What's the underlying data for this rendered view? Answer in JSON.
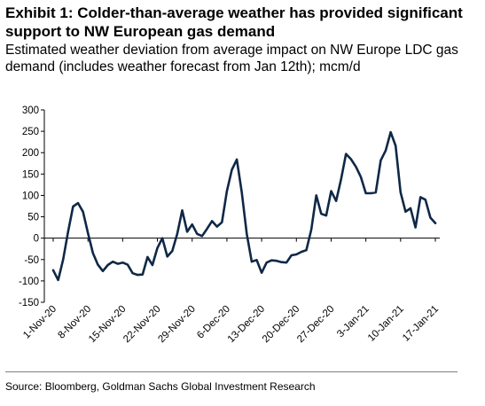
{
  "header": {
    "title": "Exhibit 1: Colder-than-average weather has provided significant support to NW European gas demand",
    "subtitle": "Estimated weather deviation from average impact on NW Europe LDC gas demand (includes weather forecast from Jan 12th); mcm/d"
  },
  "footer": {
    "source": "Source: Bloomberg, Goldman Sachs Global Investment Research"
  },
  "chart_data": {
    "type": "line",
    "title": "",
    "xlabel": "",
    "ylabel": "",
    "ylim": [
      -150,
      300
    ],
    "yticks": [
      -150,
      -100,
      -50,
      0,
      50,
      100,
      150,
      200,
      250,
      300
    ],
    "x_start": "1-Nov-20",
    "xtick_labels": [
      "1-Nov-20",
      "8-Nov-20",
      "15-Nov-20",
      "22-Nov-20",
      "29-Nov-20",
      "6-Dec-20",
      "13-Dec-20",
      "20-Dec-20",
      "27-Dec-20",
      "3-Jan-21",
      "10-Jan-21",
      "17-Jan-21"
    ],
    "grid": false,
    "legend": "none",
    "line_color": "#0f2846",
    "series": [
      {
        "values": [
          -75,
          -98,
          -50,
          15,
          74,
          82,
          62,
          12,
          -35,
          -62,
          -77,
          -63,
          -55,
          -60,
          -57,
          -62,
          -82,
          -86,
          -85,
          -44,
          -63,
          -23,
          0,
          -43,
          -30,
          10,
          65,
          15,
          32,
          10,
          5,
          22,
          40,
          27,
          37,
          110,
          160,
          184,
          107,
          10,
          -55,
          -51,
          -81,
          -57,
          -52,
          -53,
          -56,
          -57,
          -40,
          -38,
          -32,
          -28,
          20,
          100,
          57,
          53,
          110,
          87,
          137,
          197,
          185,
          167,
          143,
          105,
          105,
          107,
          182,
          205,
          248,
          216,
          107,
          62,
          70,
          25,
          96,
          90,
          48,
          35
        ]
      }
    ]
  }
}
